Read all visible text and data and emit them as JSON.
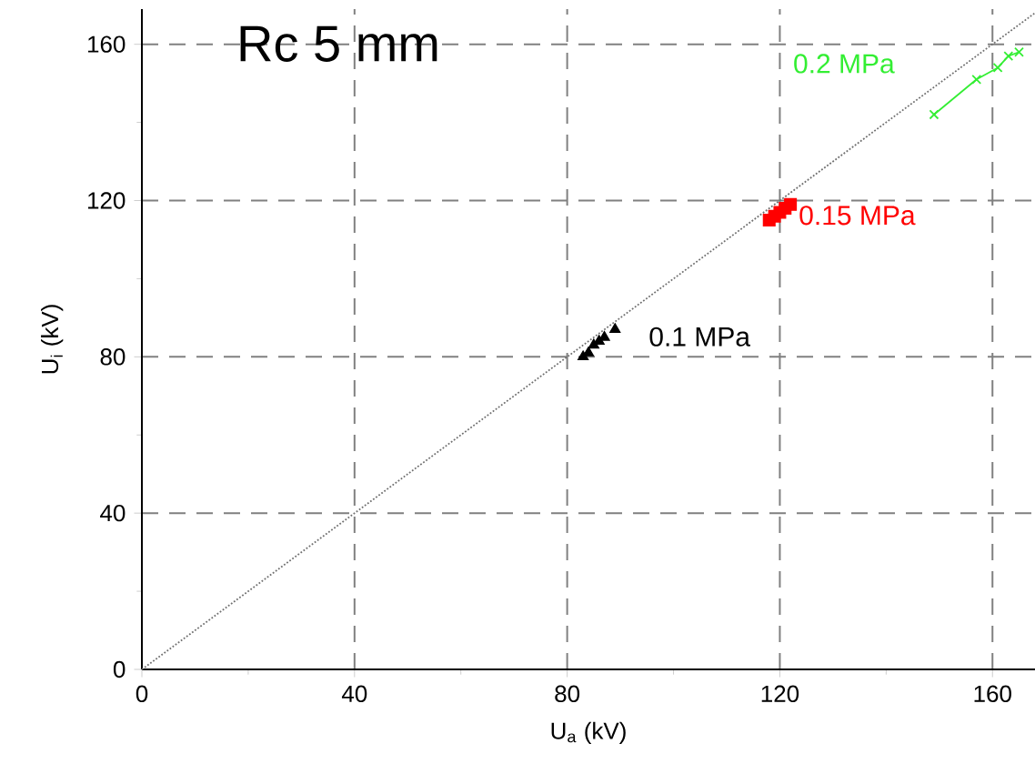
{
  "chart_data": {
    "type": "scatter",
    "title": "Rc 5 mm",
    "xlabel": "U$_{a}$ (kV)",
    "ylabel": "U$_{i}$ (kV)",
    "xlim": [
      0,
      168
    ],
    "ylim": [
      0,
      169
    ],
    "xticks": [
      0,
      40,
      80,
      120,
      160
    ],
    "yticks": [
      0,
      40,
      80,
      120,
      160
    ],
    "grid": true,
    "series": [
      {
        "type": "line",
        "color": "#707070",
        "line_style": "dotted",
        "marker": "none",
        "x": [
          0,
          168
        ],
        "values": [
          0,
          168
        ]
      },
      {
        "name": "0.1 MPa",
        "color": "#000000",
        "marker": "triangle",
        "x": [
          83,
          84,
          85,
          86,
          87,
          89
        ],
        "values": [
          80,
          81,
          83,
          84,
          85,
          87
        ]
      },
      {
        "name": "0.15 MPa",
        "color": "#ff0000",
        "marker": "square",
        "x": [
          118,
          119,
          120,
          121,
          122
        ],
        "values": [
          115,
          116,
          117,
          118,
          119
        ]
      },
      {
        "name": "0.2 MPa",
        "type": "line",
        "color": "#33ee33",
        "marker": "cross",
        "line_style": "solid",
        "x": [
          149,
          157,
          161,
          163,
          165
        ],
        "values": [
          142,
          151,
          154,
          157,
          158
        ]
      }
    ]
  }
}
